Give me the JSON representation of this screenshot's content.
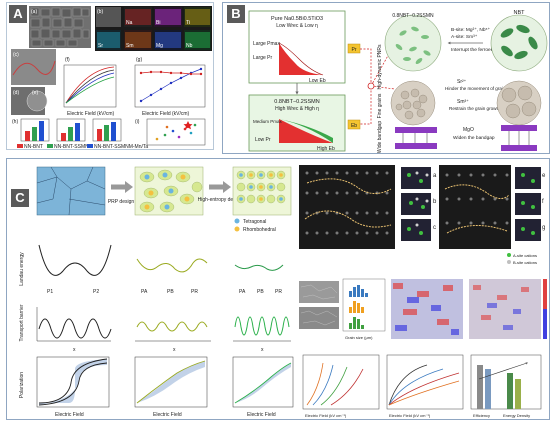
{
  "panel_labels": {
    "a": "A",
    "b": "B",
    "c": "C"
  },
  "panelA": {
    "sublabels": [
      "(a)",
      "(b)",
      "(c)",
      "(d)",
      "(e)",
      "(f)",
      "(g)",
      "(h)",
      "(i)"
    ],
    "eds_elements": [
      "Na",
      "Bi",
      "Ti",
      "Sr",
      "Sm",
      "Mg",
      "Nb",
      "O"
    ],
    "f_axis": {
      "xlabel": "Electric Field (kV/cm)",
      "ylabel": "P (μC/cm²)"
    },
    "g_axis": {
      "xlabel": "Electric Field (kV/cm)"
    },
    "legend": [
      "NN-BNT",
      "NN-BNT-SSMNM",
      "NN-BNT-SSMNM-Mn/Ta"
    ],
    "i_axis": {
      "xlabel": "η (%)",
      "ylabel": "W_rec (J/cm³)"
    }
  },
  "panelB": {
    "pure_title": "Pure Na0.5Bi0.5TiO3",
    "pure_sub": "Low Wrec & Low η",
    "large_pmax": "Large Pmax",
    "large_pr": "Large Pr",
    "low_eb": "Low Eb",
    "mixed_title": "0.8NBT−0.2SSMN",
    "mixed_sub": "High Wrec & High η",
    "medium_pmax": "Medium Pmax",
    "low_pr": "Low Pr",
    "high_eb": "High Eb",
    "pr_tag": "Pr",
    "eb_tag": "Eb",
    "circle1_title": "0.8NBT−0.2SSMN",
    "circle2_title": "NBT",
    "bsite_text": "B-site: Mg²⁺, Nb⁵⁺",
    "asite_text": "A-site: Sm³⁺",
    "interrupt_text": "Interrupt the ferroelectric order",
    "sr_text": "Sr²⁺",
    "hinder_text": "Hinder the movement of grain boundaries",
    "sm_text": "Sm³⁺",
    "restrain_text": "Restrain the grain growth",
    "mgo_text": "MgO",
    "widen_text": "Widen the bandgap",
    "side_high_dynamic": "High-dynamic PNRs",
    "side_fine_grains": "Fine grains",
    "side_wide_bandgap": "Wide bandgap"
  },
  "panelC": {
    "prp_label": "PRP design",
    "he_label": "High-entropy design",
    "legend_tetragonal": "Tetragonal",
    "legend_rhombohedral": "Rhombohedral",
    "landau_ylabel": "Landau energy",
    "barrier_ylabel": "Transport barrier",
    "pol_ylabel": "Polarization",
    "field_xlabel": "Electric Field",
    "x_label": "x",
    "p1": "P1",
    "p2": "P2",
    "pa": "PA",
    "pb": "PB",
    "pr_lbl": "PR",
    "stem_tags": [
      "a",
      "b",
      "c",
      "d",
      "e",
      "f",
      "g"
    ],
    "cation_legend": [
      "A-site cations",
      "B-site cations"
    ],
    "bar_xlabel": "Grain size (μm)",
    "bottom_charts": {
      "c1_xlabel": "Electric Field (kV cm⁻¹)",
      "c1_ylabel": "Saturation polarization (μC cm⁻²)",
      "c2_xlabel": "Electric Field (kV cm⁻¹)",
      "c2_ylabel": "Polarization (μC cm⁻²)",
      "c3_categories": [
        "Efficiency",
        "Energy Density"
      ],
      "c3_ylabel": "Efficiency (%)"
    }
  }
}
